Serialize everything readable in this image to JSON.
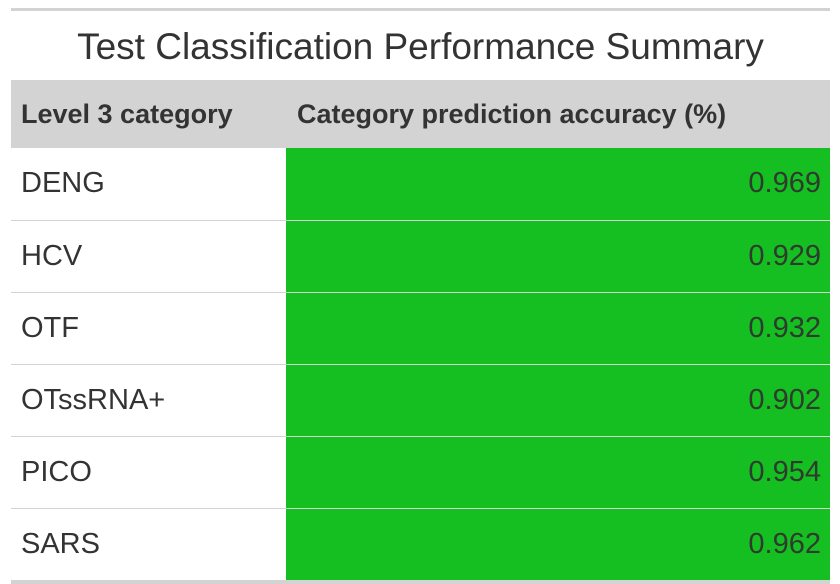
{
  "table": {
    "title": "Test Classification Performance Summary",
    "columns": [
      "Level 3 category",
      "Category prediction accuracy (%)"
    ],
    "accuracy_fill_color": "#15bf21",
    "rows": [
      {
        "category": "DENG",
        "accuracy": "0.969"
      },
      {
        "category": "HCV",
        "accuracy": "0.929"
      },
      {
        "category": "OTF",
        "accuracy": "0.932"
      },
      {
        "category": "OTssRNA+",
        "accuracy": "0.902"
      },
      {
        "category": "PICO",
        "accuracy": "0.954"
      },
      {
        "category": "SARS",
        "accuracy": "0.962"
      }
    ]
  }
}
